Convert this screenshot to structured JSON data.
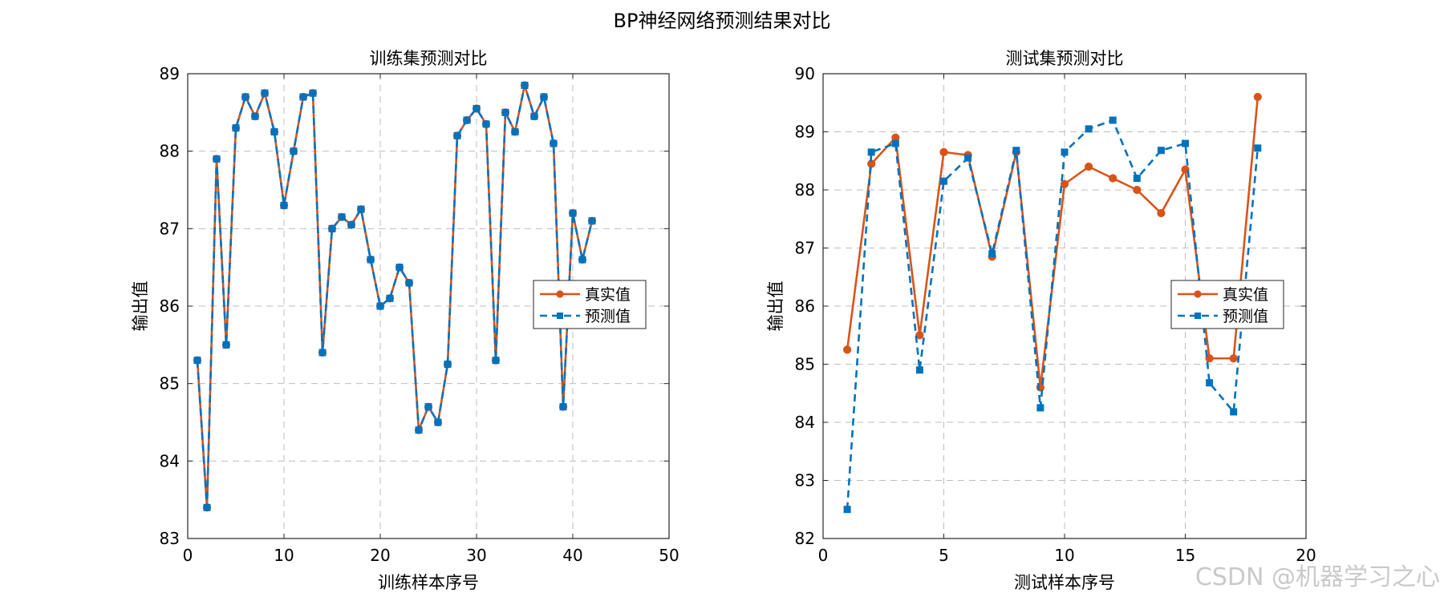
{
  "figure_title": "BP神经网络预测结果对比",
  "watermark": "CSDN @机器学习之心",
  "colors": {
    "actual": "#D95319",
    "predicted": "#0072BD",
    "grid": "#bdbdbd",
    "axis": "#262626"
  },
  "chart_data": [
    {
      "type": "line",
      "title": "训练集预测对比",
      "xlabel": "训练样本序号",
      "ylabel": "输出值",
      "xlim": [
        0,
        50
      ],
      "ylim": [
        83,
        89
      ],
      "xticks": [
        0,
        10,
        20,
        30,
        40,
        50
      ],
      "yticks": [
        83,
        84,
        85,
        86,
        87,
        88,
        89
      ],
      "grid": true,
      "legend_position": "right",
      "x": [
        1,
        2,
        3,
        4,
        5,
        6,
        7,
        8,
        9,
        10,
        11,
        12,
        13,
        14,
        15,
        16,
        17,
        18,
        19,
        20,
        21,
        22,
        23,
        24,
        25,
        26,
        27,
        28,
        29,
        30,
        31,
        32,
        33,
        34,
        35,
        36,
        37,
        38,
        39,
        40,
        41,
        42
      ],
      "series": [
        {
          "name": "真实值",
          "style": "solid-circle",
          "color": "#D95319",
          "values": [
            85.3,
            83.4,
            87.9,
            85.5,
            88.3,
            88.7,
            88.45,
            88.75,
            88.25,
            87.3,
            88.0,
            88.7,
            88.75,
            85.4,
            87.0,
            87.15,
            87.05,
            87.25,
            86.6,
            86.0,
            86.1,
            86.5,
            86.3,
            84.4,
            84.7,
            84.5,
            85.25,
            88.2,
            88.4,
            88.55,
            88.35,
            85.3,
            88.5,
            88.25,
            88.85,
            88.45,
            88.7,
            88.1,
            84.7,
            87.2,
            86.6,
            87.1
          ]
        },
        {
          "name": "预测值",
          "style": "dashed-square",
          "color": "#0072BD",
          "values": [
            85.3,
            83.4,
            87.9,
            85.5,
            88.3,
            88.7,
            88.45,
            88.75,
            88.25,
            87.3,
            88.0,
            88.7,
            88.75,
            85.4,
            87.0,
            87.15,
            87.05,
            87.25,
            86.6,
            86.0,
            86.1,
            86.5,
            86.3,
            84.4,
            84.7,
            84.5,
            85.25,
            88.2,
            88.4,
            88.55,
            88.35,
            85.3,
            88.5,
            88.25,
            88.85,
            88.45,
            88.7,
            88.1,
            84.7,
            87.2,
            86.6,
            87.1
          ]
        }
      ]
    },
    {
      "type": "line",
      "title": "测试集预测对比",
      "xlabel": "测试样本序号",
      "ylabel": "输出值",
      "xlim": [
        0,
        20
      ],
      "ylim": [
        82,
        90
      ],
      "xticks": [
        0,
        5,
        10,
        15,
        20
      ],
      "yticks": [
        82,
        83,
        84,
        85,
        86,
        87,
        88,
        89,
        90
      ],
      "grid": true,
      "legend_position": "right",
      "x": [
        1,
        2,
        3,
        4,
        5,
        6,
        7,
        8,
        9,
        10,
        11,
        12,
        13,
        14,
        15,
        16,
        17,
        18
      ],
      "series": [
        {
          "name": "真实值",
          "style": "solid-circle",
          "color": "#D95319",
          "values": [
            85.25,
            88.45,
            88.9,
            85.5,
            88.65,
            88.6,
            86.85,
            88.65,
            84.6,
            88.1,
            88.4,
            88.2,
            88.0,
            87.6,
            88.35,
            85.1,
            85.1,
            89.6
          ]
        },
        {
          "name": "预测值",
          "style": "dashed-square",
          "color": "#0072BD",
          "values": [
            82.5,
            88.65,
            88.8,
            84.9,
            88.15,
            88.55,
            86.9,
            88.68,
            84.25,
            88.65,
            89.05,
            89.2,
            88.2,
            88.68,
            88.8,
            84.68,
            84.18,
            88.72
          ]
        }
      ]
    }
  ]
}
